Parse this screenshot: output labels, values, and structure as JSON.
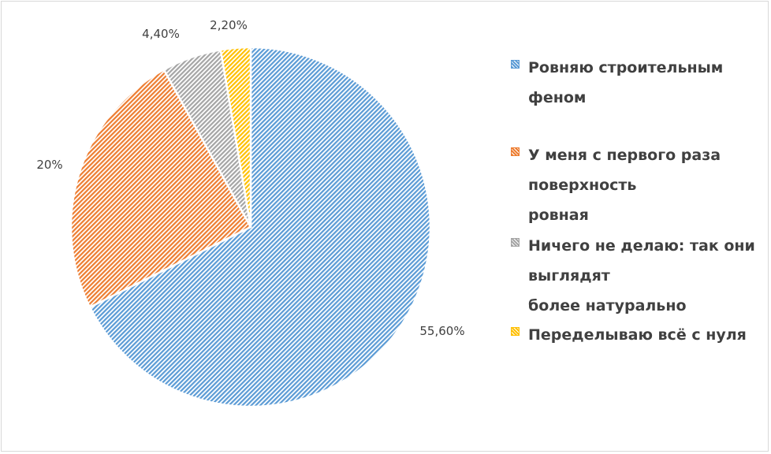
{
  "chart_data": {
    "type": "pie",
    "categories": [
      "Ровняю строительным феном",
      "У меня с первого раза поверхность ровная",
      "Ничего не делаю: так они выглядят более натурально",
      "Переделываю всё с нуля"
    ],
    "values": [
      55.6,
      20,
      4.4,
      2.2
    ],
    "data_labels": [
      "55,60%",
      "20%",
      "4,40%",
      "2,20%"
    ],
    "colors": [
      "#5b9bd5",
      "#ed7d31",
      "#a5a5a5",
      "#ffc000"
    ],
    "fill_pattern": "diagonal-hatch",
    "legend_position": "right"
  },
  "legend": {
    "items": [
      {
        "lines": [
          "Ровняю строительным",
          "феном"
        ]
      },
      {
        "lines": [
          "У меня с первого раза",
          "поверхность",
          "ровная"
        ]
      },
      {
        "lines": [
          "Ничего не делаю: так они",
          "выглядят",
          "более натурально"
        ]
      },
      {
        "lines": [
          "Переделываю всё с нуля"
        ]
      }
    ]
  }
}
